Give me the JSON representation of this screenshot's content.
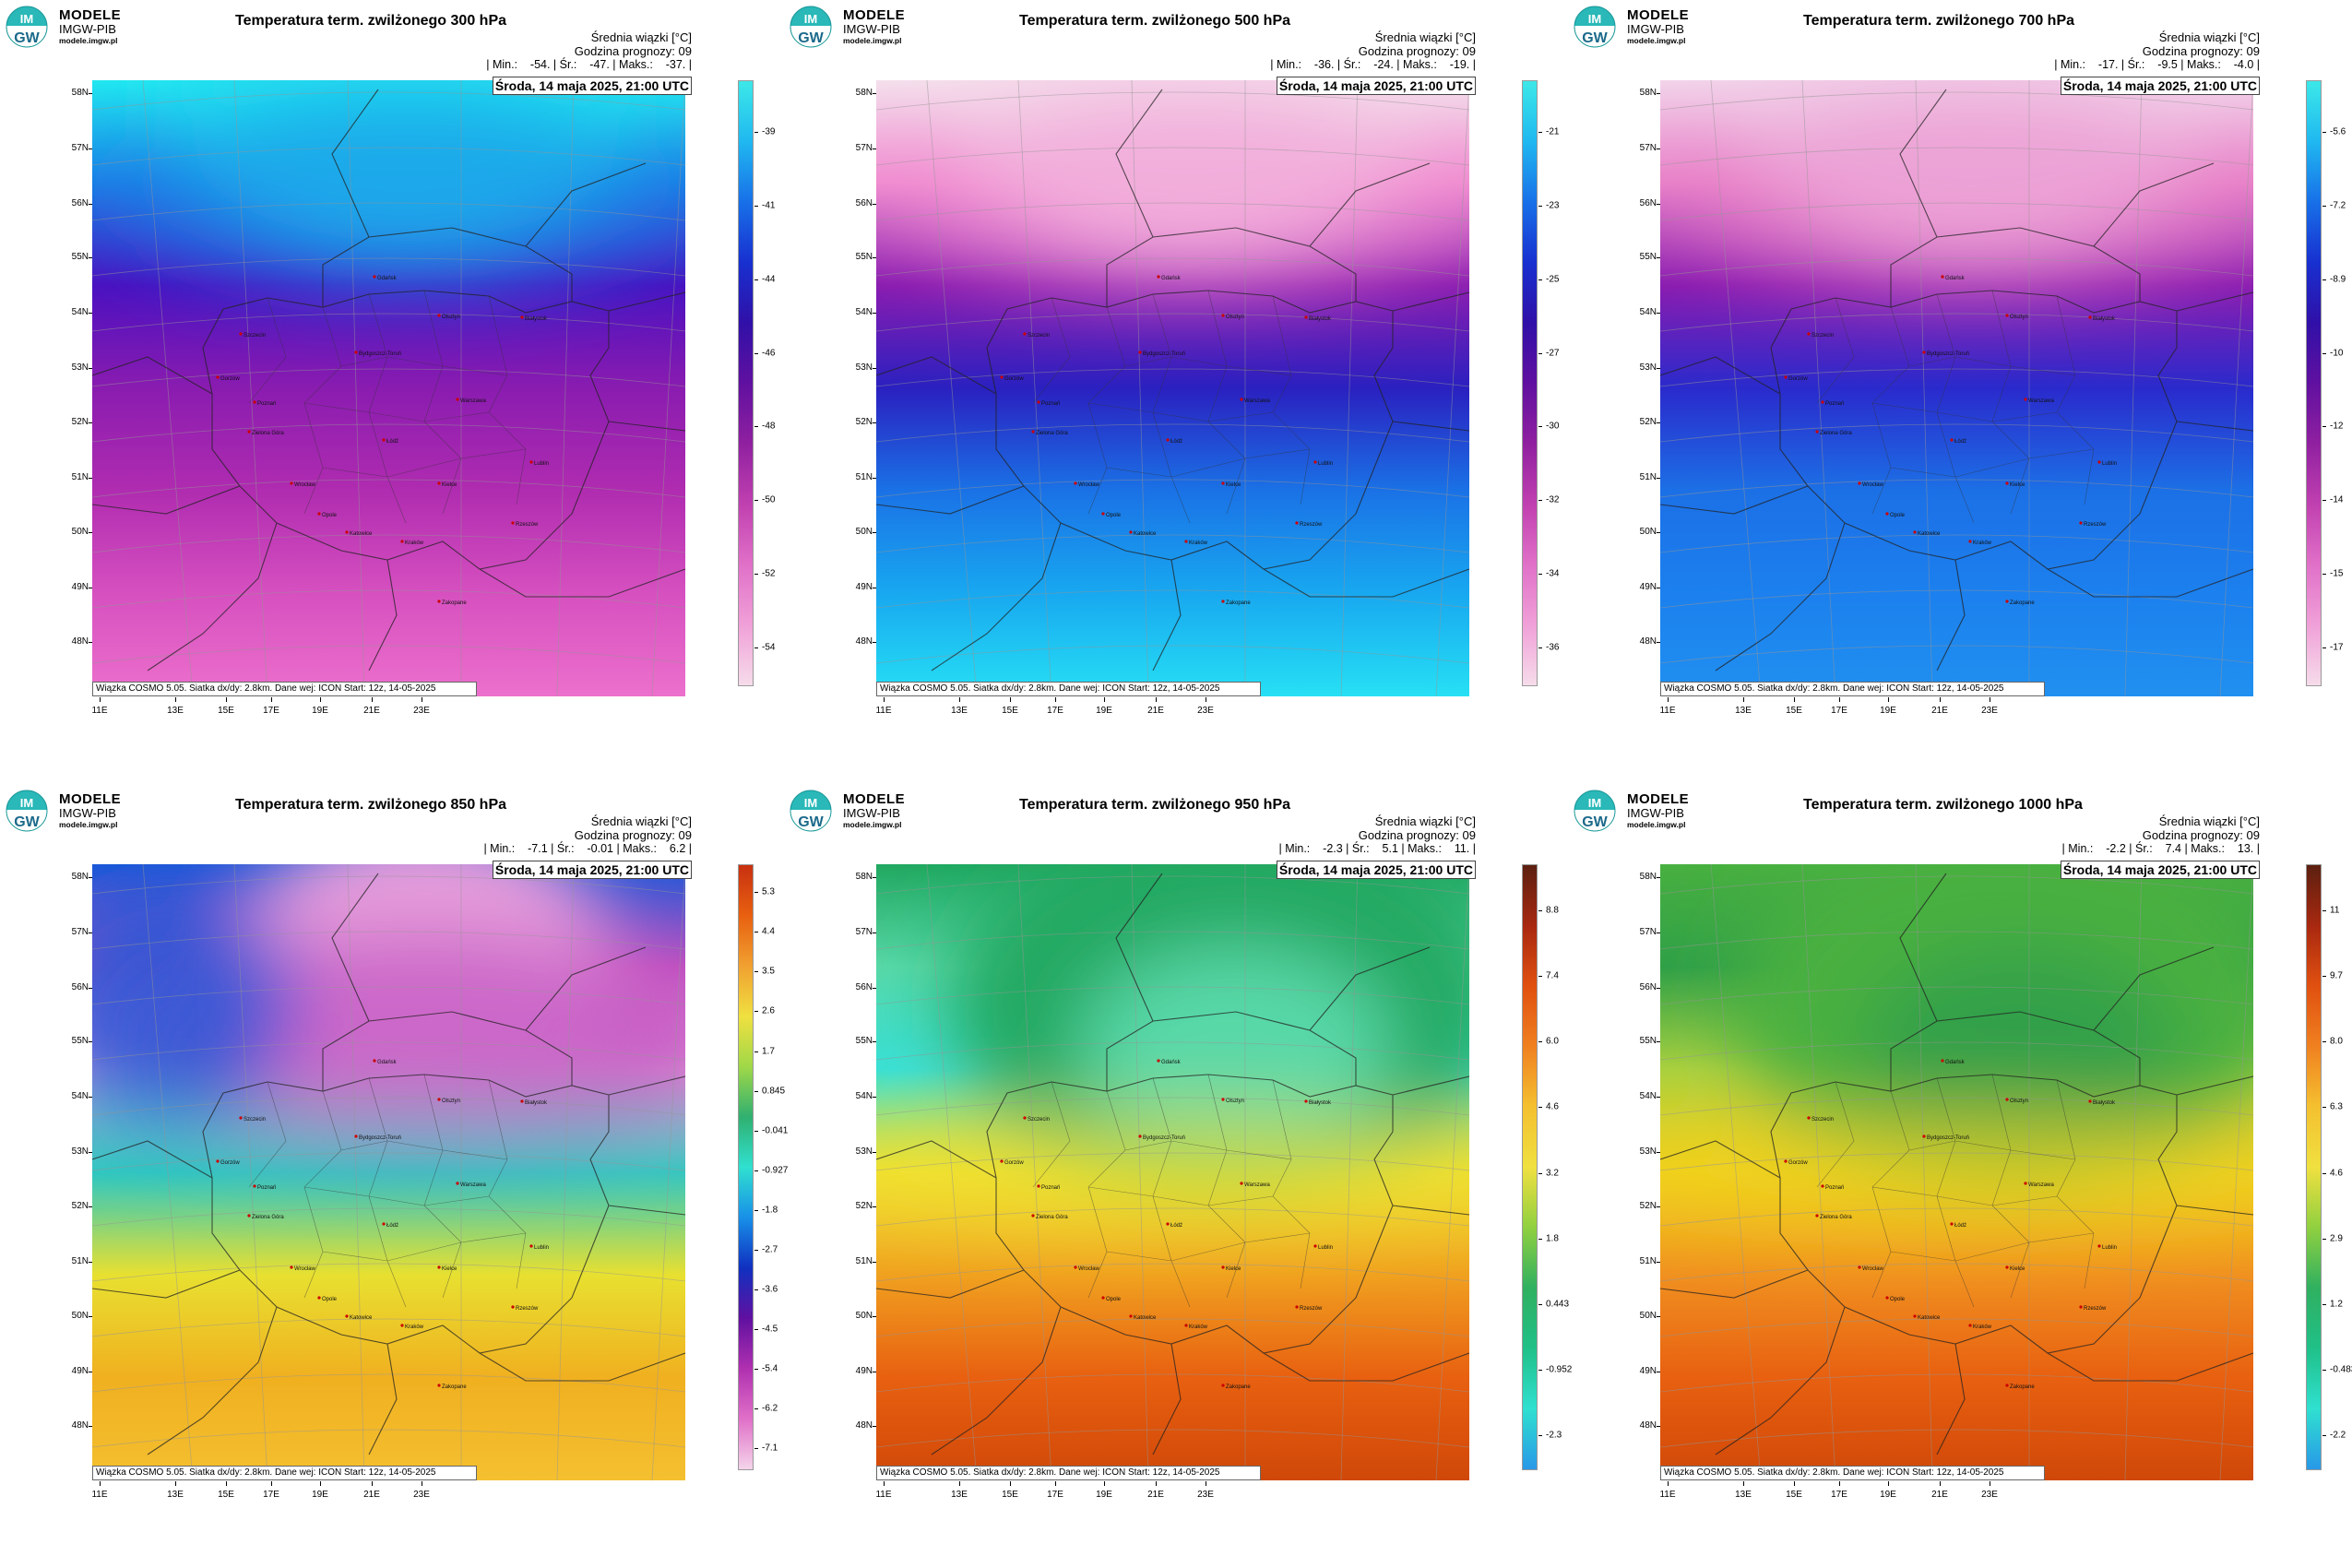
{
  "brand": {
    "title": "MODELE",
    "subtitle": "IMGW-PIB",
    "url": "modele.imgw.pl",
    "badge_top": "IM",
    "badge_bottom": "GW"
  },
  "common": {
    "mean_label": "Średnia wiązki [°C]",
    "forecast_hour_label": "Godzina prognozy: 09",
    "date_label": "Środa, 14 maja 2025, 21:00 UTC",
    "footer": "Wiązka COSMO 5.05. Siatka dx/dy: 2.8km. Dane wej: ICON Start: 12z, 14-05-2025",
    "lat_labels": [
      "58N",
      "57N",
      "56N",
      "55N",
      "54N",
      "53N",
      "52N",
      "51N",
      "50N",
      "49N",
      "48N"
    ],
    "lon_labels": [
      "11E",
      "13E",
      "15E",
      "17E",
      "19E",
      "21E",
      "23E"
    ]
  },
  "cities": [
    "Gdańsk",
    "Olsztyn",
    "Szczecin",
    "Białystok",
    "Bydgoszcz-Toruń",
    "Gorzów",
    "Poznań",
    "Warszawa",
    "Zielona Góra",
    "Łódź",
    "Lublin",
    "Wrocław",
    "Opole",
    "Kielce",
    "Katowice",
    "Kraków",
    "Rzeszów",
    "Zakopane"
  ],
  "panels": [
    {
      "title": "Temperatura term. zwilżonego 300 hPa",
      "stats": "| Min.:    -54. | Śr.:    -47. | Maks.:    -37. |",
      "palette": "cold",
      "map_colors": [
        "#22e8f0",
        "#1a7ee6",
        "#4a10c0",
        "#8a1cb0",
        "#b02cb0",
        "#d650c0",
        "#ec70cc"
      ],
      "colorbar": [
        "-39",
        "-41",
        "-44",
        "-46",
        "-48",
        "-50",
        "-52",
        "-54"
      ]
    },
    {
      "title": "Temperatura term. zwilżonego 500 hPa",
      "stats": "| Min.:    -36. | Śr.:    -24. | Maks.:    -19. |",
      "palette": "cold",
      "map_colors": [
        "#f4e0ec",
        "#f08cd0",
        "#8a1cb0",
        "#2a20c0",
        "#1a72e6",
        "#18a8f0",
        "#26e0f4"
      ],
      "colorbar": [
        "-21",
        "-23",
        "-25",
        "-27",
        "-30",
        "-32",
        "-34",
        "-36"
      ]
    },
    {
      "title": "Temperatura term. zwilżonego 700 hPa",
      "stats": "| Min.:    -17. | Śr.:    -9.5 | Maks.:    -4.0 |",
      "palette": "cold",
      "map_colors": [
        "#f2d4ea",
        "#e880c8",
        "#8a1cb0",
        "#2a2acc",
        "#1c70e6",
        "#1c80ee",
        "#2090f0"
      ],
      "colorbar": [
        "-5.6",
        "-7.2",
        "-8.9",
        "-10",
        "-12",
        "-14",
        "-15",
        "-17"
      ]
    },
    {
      "title": "Temperatura term. zwilżonego 850 hPa",
      "stats": "| Min.:    -7.1 | Śr.:    -0.01 | Maks.:    6.2 |",
      "palette": "mixed",
      "map_colors": [
        "#1c58d8",
        "#c050c0",
        "#e8a0dc",
        "#30c8c0",
        "#e8e030",
        "#f0b020",
        "#f4c030"
      ],
      "colorbar": [
        "5.3",
        "4.4",
        "3.5",
        "2.6",
        "1.7",
        "0.845",
        "-0.041",
        "-0.927",
        "-1.8",
        "-2.7",
        "-3.6",
        "-4.5",
        "-5.4",
        "-6.2",
        "-7.1"
      ]
    },
    {
      "title": "Temperatura term. zwilżonego 950 hPa",
      "stats": "| Min.:    -2.3 | Śr.:    5.1 | Maks.:    11. |",
      "palette": "warm",
      "map_colors": [
        "#20a860",
        "#58d8a8",
        "#36e0d8",
        "#f0e030",
        "#f0a020",
        "#e86010",
        "#d04808"
      ],
      "colorbar": [
        "8.8",
        "7.4",
        "6.0",
        "4.6",
        "3.2",
        "1.8",
        "0.443",
        "-0.952",
        "-2.3"
      ]
    },
    {
      "title": "Temperatura term. zwilżonego 1000 hPa",
      "stats": "| Min.:    -2.2 | Śr.:    7.4 | Maks.:    13. |",
      "palette": "warm",
      "map_colors": [
        "#48b040",
        "#30a048",
        "#a8d040",
        "#f0d020",
        "#f09020",
        "#e86010",
        "#d04808"
      ],
      "colorbar": [
        "11",
        "9.7",
        "8.0",
        "6.3",
        "4.6",
        "2.9",
        "1.2",
        "-0.483",
        "-2.2"
      ]
    }
  ]
}
